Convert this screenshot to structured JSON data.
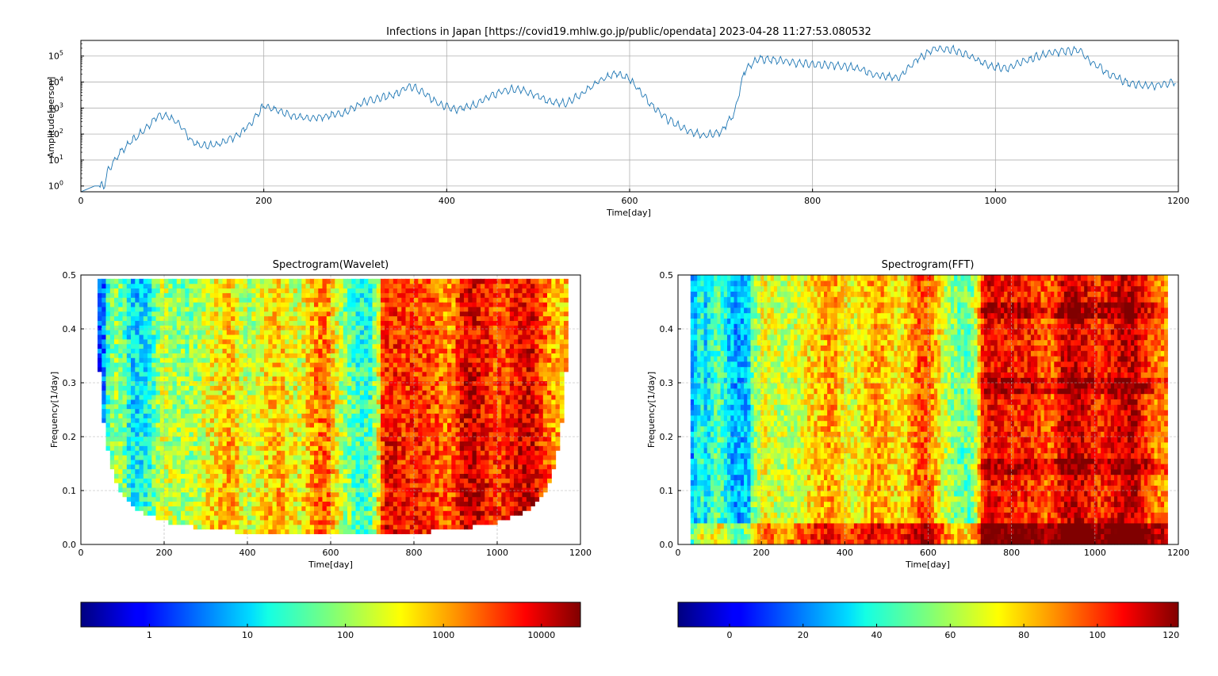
{
  "chart_data": [
    {
      "type": "line",
      "title": "Infections in Japan [https://covid19.mhlw.go.jp/public/opendata] 2023-04-28 11:27:53.080532",
      "xlabel": "Time[day]",
      "ylabel": "Amplitude[person]",
      "xlim": [
        0,
        1200
      ],
      "ylim": [
        0.6,
        400000
      ],
      "yscale": "log",
      "grid": true,
      "color": "#1f77b4",
      "xticks": [
        "0",
        "200",
        "400",
        "600",
        "800",
        "1000",
        "1200"
      ],
      "yticks": [
        {
          "base": "10",
          "exp": "0"
        },
        {
          "base": "10",
          "exp": "1"
        },
        {
          "base": "10",
          "exp": "2"
        },
        {
          "base": "10",
          "exp": "3"
        },
        {
          "base": "10",
          "exp": "4"
        },
        {
          "base": "10",
          "exp": "5"
        }
      ],
      "series": [
        {
          "x": [
            0,
            15,
            25,
            30,
            40,
            55,
            70,
            85,
            95,
            110,
            120,
            130,
            150,
            170,
            185,
            200,
            215,
            230,
            250,
            270,
            290,
            310,
            330,
            345,
            360,
            375,
            390,
            410,
            430,
            450,
            465,
            480,
            495,
            510,
            530,
            545,
            565,
            585,
            600,
            620,
            640,
            660,
            680,
            700,
            715,
            725,
            740,
            760,
            790,
            820,
            850,
            870,
            895,
            915,
            935,
            955,
            975,
            995,
            1015,
            1035,
            1055,
            1075,
            1090,
            1105,
            1125,
            1145,
            1165,
            1185,
            1197
          ],
          "y": [
            0.6,
            1,
            1,
            4,
            15,
            50,
            150,
            550,
            500,
            200,
            60,
            35,
            40,
            80,
            250,
            1200,
            800,
            500,
            400,
            500,
            700,
            1800,
            2500,
            3500,
            7000,
            4000,
            1500,
            900,
            1300,
            3000,
            5000,
            5500,
            3500,
            1800,
            1500,
            3000,
            10000,
            22000,
            13000,
            1800,
            400,
            150,
            90,
            120,
            700,
            25000,
            80000,
            70000,
            50000,
            45000,
            35000,
            18000,
            15000,
            80000,
            200000,
            170000,
            90000,
            40000,
            35000,
            70000,
            120000,
            150000,
            170000,
            60000,
            20000,
            9000,
            7000,
            8000,
            10000
          ]
        }
      ]
    },
    {
      "type": "heatmap",
      "title": "Spectrogram(Wavelet)",
      "xlabel": "Time[day]",
      "ylabel": "Frequency[1/day]",
      "xlim": [
        0,
        1200
      ],
      "ylim": [
        0.0,
        0.5
      ],
      "grid": true,
      "colormap": "jet",
      "xticks": [
        "0",
        "200",
        "400",
        "600",
        "800",
        "1000",
        "1200"
      ],
      "yticks": [
        "0.0",
        "0.1",
        "0.2",
        "0.3",
        "0.4",
        "0.5"
      ],
      "colorbar": {
        "scale": "log",
        "range": [
          0.2,
          25000
        ],
        "ticks": [
          "1",
          "10",
          "100",
          "1000",
          "10000"
        ]
      }
    },
    {
      "type": "heatmap",
      "title": "Spectrogram(FFT)",
      "xlabel": "Time[day]",
      "ylabel": "Frequency[1/day]",
      "xlim": [
        0,
        1200
      ],
      "ylim": [
        0.0,
        0.5
      ],
      "grid": true,
      "colormap": "jet",
      "xticks": [
        "0",
        "200",
        "400",
        "600",
        "800",
        "1000",
        "1200"
      ],
      "yticks": [
        "0.0",
        "0.1",
        "0.2",
        "0.3",
        "0.4",
        "0.5"
      ],
      "colorbar": {
        "scale": "linear",
        "range": [
          -14,
          122
        ],
        "ticks": [
          "0",
          "20",
          "40",
          "60",
          "80",
          "100",
          "120"
        ]
      }
    }
  ]
}
